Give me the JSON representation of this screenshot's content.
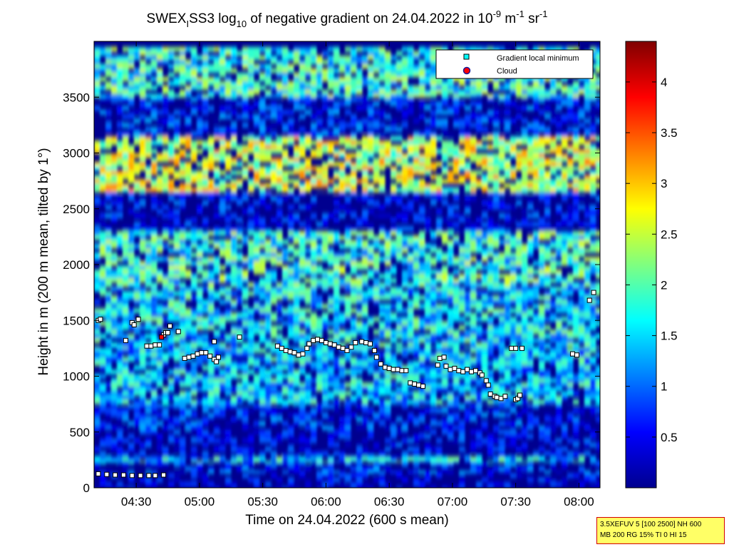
{
  "chart_data": {
    "type": "heatmap",
    "title": "SWEX_I SS3 log10 of negative gradient on 24.04.2022 in 10^-9 m^-1 sr^-1",
    "title_parts": {
      "lead": "SWEX",
      "sub_i": "I",
      "mid": "SS3 log",
      "sub_10": "10",
      "tail": " of negative gradient on 24.04.2022 in 10",
      "sup_1": "-9",
      "unit_m": " m",
      "sup_2": "-1",
      "unit_sr": " sr",
      "sup_3": "-1"
    },
    "xlabel": "Time on 24.04.2022 (600 s mean)",
    "ylabel": "Height in m (200 m mean, tilted by 1°)",
    "xlim": [
      "04:10",
      "08:10"
    ],
    "ylim": [
      0,
      4000
    ],
    "x_ticks": [
      "04:30",
      "05:00",
      "05:30",
      "06:00",
      "06:30",
      "07:00",
      "07:30",
      "08:00"
    ],
    "y_ticks": [
      0,
      500,
      1000,
      1500,
      2000,
      2500,
      3000,
      3500
    ],
    "colorbar": {
      "min": 0,
      "max": 4.4,
      "ticks": [
        "0.5",
        "1",
        "1.5",
        "2",
        "2.5",
        "3",
        "3.5",
        "4"
      ],
      "colormap": "jet"
    },
    "grid": false,
    "legend_position": "top-right",
    "legend": [
      {
        "label": "Gradient local minimum",
        "marker": "square",
        "color": "#00ffff"
      },
      {
        "label": "Cloud",
        "marker": "circle",
        "color": "#ff0000"
      }
    ],
    "bands": [
      {
        "from": 0,
        "to": 130,
        "level": 0.2
      },
      {
        "from": 130,
        "to": 230,
        "level": 0.55
      },
      {
        "from": 230,
        "to": 280,
        "level": 1.45
      },
      {
        "from": 280,
        "to": 520,
        "level": 0.3
      },
      {
        "from": 520,
        "to": 750,
        "level": 0.5
      },
      {
        "from": 750,
        "to": 1250,
        "level": 1.4
      },
      {
        "from": 1250,
        "to": 1800,
        "level": 1.5
      },
      {
        "from": 1800,
        "to": 2300,
        "level": 1.8
      },
      {
        "from": 2300,
        "to": 2650,
        "level": 0.35
      },
      {
        "from": 2650,
        "to": 3150,
        "level": 2.5
      },
      {
        "from": 3150,
        "to": 3500,
        "level": 0.5
      },
      {
        "from": 3500,
        "to": 3950,
        "level": 1.8
      }
    ],
    "minima": [
      {
        "t": "04:12",
        "h": 1500
      },
      {
        "t": "04:13",
        "h": 1510
      },
      {
        "t": "04:25",
        "h": 1320
      },
      {
        "t": "04:28",
        "h": 1480
      },
      {
        "t": "04:29",
        "h": 1460
      },
      {
        "t": "04:31",
        "h": 1510
      },
      {
        "t": "04:35",
        "h": 1270
      },
      {
        "t": "04:37",
        "h": 1270
      },
      {
        "t": "04:39",
        "h": 1280
      },
      {
        "t": "04:41",
        "h": 1280
      },
      {
        "t": "04:43",
        "h": 1370
      },
      {
        "t": "04:44",
        "h": 1390
      },
      {
        "t": "04:45",
        "h": 1390
      },
      {
        "t": "04:46",
        "h": 1450
      },
      {
        "t": "04:50",
        "h": 1400
      },
      {
        "t": "04:53",
        "h": 1160
      },
      {
        "t": "04:55",
        "h": 1170
      },
      {
        "t": "04:57",
        "h": 1180
      },
      {
        "t": "04:59",
        "h": 1200
      },
      {
        "t": "05:01",
        "h": 1210
      },
      {
        "t": "05:03",
        "h": 1210
      },
      {
        "t": "05:05",
        "h": 1180
      },
      {
        "t": "05:07",
        "h": 1150
      },
      {
        "t": "05:08",
        "h": 1130
      },
      {
        "t": "05:09",
        "h": 1170
      },
      {
        "t": "05:07",
        "h": 1310
      },
      {
        "t": "05:19",
        "h": 1350
      },
      {
        "t": "05:37",
        "h": 1270
      },
      {
        "t": "05:39",
        "h": 1250
      },
      {
        "t": "05:41",
        "h": 1230
      },
      {
        "t": "05:43",
        "h": 1220
      },
      {
        "t": "05:45",
        "h": 1210
      },
      {
        "t": "05:47",
        "h": 1190
      },
      {
        "t": "05:49",
        "h": 1200
      },
      {
        "t": "05:51",
        "h": 1250
      },
      {
        "t": "05:52",
        "h": 1290
      },
      {
        "t": "05:54",
        "h": 1320
      },
      {
        "t": "05:56",
        "h": 1330
      },
      {
        "t": "05:58",
        "h": 1320
      },
      {
        "t": "06:00",
        "h": 1300
      },
      {
        "t": "06:02",
        "h": 1290
      },
      {
        "t": "06:04",
        "h": 1280
      },
      {
        "t": "06:06",
        "h": 1260
      },
      {
        "t": "06:08",
        "h": 1250
      },
      {
        "t": "06:10",
        "h": 1230
      },
      {
        "t": "06:12",
        "h": 1260
      },
      {
        "t": "06:14",
        "h": 1300
      },
      {
        "t": "06:17",
        "h": 1310
      },
      {
        "t": "06:19",
        "h": 1300
      },
      {
        "t": "06:21",
        "h": 1290
      },
      {
        "t": "06:23",
        "h": 1230
      },
      {
        "t": "06:24",
        "h": 1170
      },
      {
        "t": "06:26",
        "h": 1110
      },
      {
        "t": "06:28",
        "h": 1080
      },
      {
        "t": "06:30",
        "h": 1070
      },
      {
        "t": "06:32",
        "h": 1060
      },
      {
        "t": "06:34",
        "h": 1060
      },
      {
        "t": "06:36",
        "h": 1050
      },
      {
        "t": "06:38",
        "h": 1050
      },
      {
        "t": "06:40",
        "h": 940
      },
      {
        "t": "06:42",
        "h": 930
      },
      {
        "t": "06:44",
        "h": 920
      },
      {
        "t": "06:46",
        "h": 910
      },
      {
        "t": "06:53",
        "h": 1100
      },
      {
        "t": "06:54",
        "h": 1160
      },
      {
        "t": "06:56",
        "h": 1170
      },
      {
        "t": "06:57",
        "h": 1090
      },
      {
        "t": "06:59",
        "h": 1060
      },
      {
        "t": "07:01",
        "h": 1070
      },
      {
        "t": "07:03",
        "h": 1050
      },
      {
        "t": "07:05",
        "h": 1040
      },
      {
        "t": "07:07",
        "h": 1060
      },
      {
        "t": "07:09",
        "h": 1040
      },
      {
        "t": "07:11",
        "h": 1050
      },
      {
        "t": "07:13",
        "h": 1030
      },
      {
        "t": "07:14",
        "h": 1010
      },
      {
        "t": "07:16",
        "h": 960
      },
      {
        "t": "07:17",
        "h": 920
      },
      {
        "t": "07:18",
        "h": 840
      },
      {
        "t": "07:20",
        "h": 820
      },
      {
        "t": "07:21",
        "h": 810
      },
      {
        "t": "07:23",
        "h": 800
      },
      {
        "t": "07:25",
        "h": 820
      },
      {
        "t": "07:28",
        "h": 1250
      },
      {
        "t": "07:30",
        "h": 1250
      },
      {
        "t": "07:33",
        "h": 1250
      },
      {
        "t": "07:30",
        "h": 790
      },
      {
        "t": "07:31",
        "h": 800
      },
      {
        "t": "07:32",
        "h": 830
      },
      {
        "t": "07:57",
        "h": 1200
      },
      {
        "t": "07:59",
        "h": 1190
      },
      {
        "t": "08:05",
        "h": 1680
      },
      {
        "t": "08:07",
        "h": 1750
      },
      {
        "t": "04:12",
        "h": 125
      },
      {
        "t": "04:16",
        "h": 120
      },
      {
        "t": "04:20",
        "h": 115
      },
      {
        "t": "04:24",
        "h": 115
      },
      {
        "t": "04:28",
        "h": 110
      },
      {
        "t": "04:32",
        "h": 110
      },
      {
        "t": "04:36",
        "h": 110
      },
      {
        "t": "04:39",
        "h": 110
      },
      {
        "t": "04:43",
        "h": 115
      }
    ],
    "clouds": [
      {
        "t": "04:42",
        "h": 1350
      }
    ]
  },
  "info_box": {
    "line1": "3.5XEFUV 5 [100 2500] NH 600",
    "line2": "MB 200 RG 15% TI 0 HI 15"
  },
  "colors": {
    "info_bg": "#ffff66",
    "info_border": "#d40000"
  }
}
